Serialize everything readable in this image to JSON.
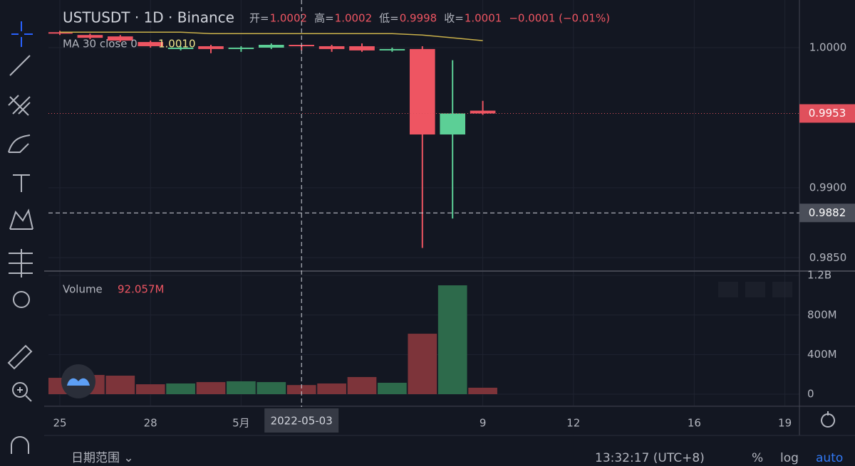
{
  "header": {
    "title": "USTUSDT · 1D · Binance",
    "readout": [
      {
        "label": "开=",
        "value": "1.0002"
      },
      {
        "label": "高=",
        "value": "1.0002"
      },
      {
        "label": "低=",
        "value": "0.9998"
      },
      {
        "label": "收=",
        "value": "1.0001"
      }
    ],
    "change": "−0.0001 (−0.01%)",
    "ma_label": "MA 30 close 0",
    "ma_value": "1.0010",
    "volume_label": "Volume",
    "volume_value": "92.057M"
  },
  "chart_data": {
    "type": "candlestick",
    "x": [
      "2022-04-25",
      "2022-04-26",
      "2022-04-27",
      "2022-04-28",
      "2022-04-29",
      "2022-04-30",
      "2022-05-01",
      "2022-05-02",
      "2022-05-03",
      "2022-05-04",
      "2022-05-05",
      "2022-05-06",
      "2022-05-07",
      "2022-05-08",
      "2022-05-09"
    ],
    "open": [
      1.0011,
      1.0009,
      1.0008,
      1.0004,
      0.9999,
      1.0001,
      0.9999,
      1.0,
      1.0002,
      1.0001,
      1.0001,
      0.9998,
      0.9999,
      0.9938,
      0.9955
    ],
    "high": [
      1.0012,
      1.001,
      1.0009,
      1.0005,
      1.0001,
      1.0002,
      1.0001,
      1.0003,
      1.0002,
      1.0002,
      1.0003,
      1.0,
      1.0001,
      0.9991,
      0.9962
    ],
    "low": [
      1.0009,
      1.0006,
      1.0004,
      1.0,
      0.9998,
      0.9996,
      0.9997,
      0.9999,
      0.9998,
      0.9997,
      0.9997,
      0.9997,
      0.9857,
      0.9878,
      0.9952
    ],
    "close": [
      1.001,
      1.0007,
      1.0005,
      1.0001,
      1.0,
      0.9999,
      1.0,
      1.0002,
      1.0001,
      0.9999,
      0.9998,
      0.9999,
      0.9938,
      0.9953,
      0.9953
    ],
    "volume": [
      165000000,
      194000000,
      187000000,
      100000000,
      108000000,
      122000000,
      130000000,
      122000000,
      92057000,
      108000000,
      173000000,
      115000000,
      611000000,
      1100000000,
      65000000
    ],
    "ma": {
      "name": "MA 30 close 0",
      "color": "#c9b04a",
      "values": [
        1.0011,
        1.0011,
        1.0011,
        1.0011,
        1.0011,
        1.001,
        1.001,
        1.001,
        1.001,
        1.001,
        1.001,
        1.001,
        1.0009,
        1.0007,
        1.0005
      ]
    },
    "up_color": "#5ccf96",
    "down_color": "#ee5562",
    "volume_up_color": "#2d6a4b",
    "volume_down_color": "#7d343a",
    "xlim": [
      "2022-04-24",
      "2022-05-20"
    ],
    "xticks": [
      {
        "value": "2022-04-25",
        "label": "25"
      },
      {
        "value": "2022-04-28",
        "label": "28"
      },
      {
        "value": "2022-05-01",
        "label": "5月"
      },
      {
        "value": "2022-05-09",
        "label": "9"
      },
      {
        "value": "2022-05-12",
        "label": "12"
      },
      {
        "value": "2022-05-16",
        "label": "16"
      },
      {
        "value": "2022-05-19",
        "label": "19"
      }
    ],
    "ylim": [
      0.9841,
      1.0034
    ],
    "yticks": [
      {
        "value": 1,
        "label": "1.0000"
      },
      {
        "value": 0.99,
        "label": "0.9900"
      },
      {
        "value": 0.985,
        "label": "0.9850"
      }
    ],
    "y2lim": [
      -115000000,
      1237000000
    ],
    "y2ticks": [
      0,
      {
        "value": 400000000,
        "label": "400M"
      },
      {
        "value": 800000000,
        "label": "800M"
      },
      {
        "value": 1200000000,
        "label": "1.2B"
      }
    ],
    "grid": true,
    "price_lines": [
      {
        "value": 0.9953,
        "label": "0.9953",
        "color": "#e0505c"
      },
      {
        "value": 0.9882,
        "label": "0.9882",
        "color": "#4a4e59"
      }
    ],
    "crosshair": {
      "value": "2022-05-03",
      "label": "2022-05-03"
    }
  },
  "footer": {
    "range": "日期范围 ⌄",
    "time": "13:32:17 (UTC+8)",
    "percent": "%",
    "log": "log",
    "auto": "auto"
  }
}
